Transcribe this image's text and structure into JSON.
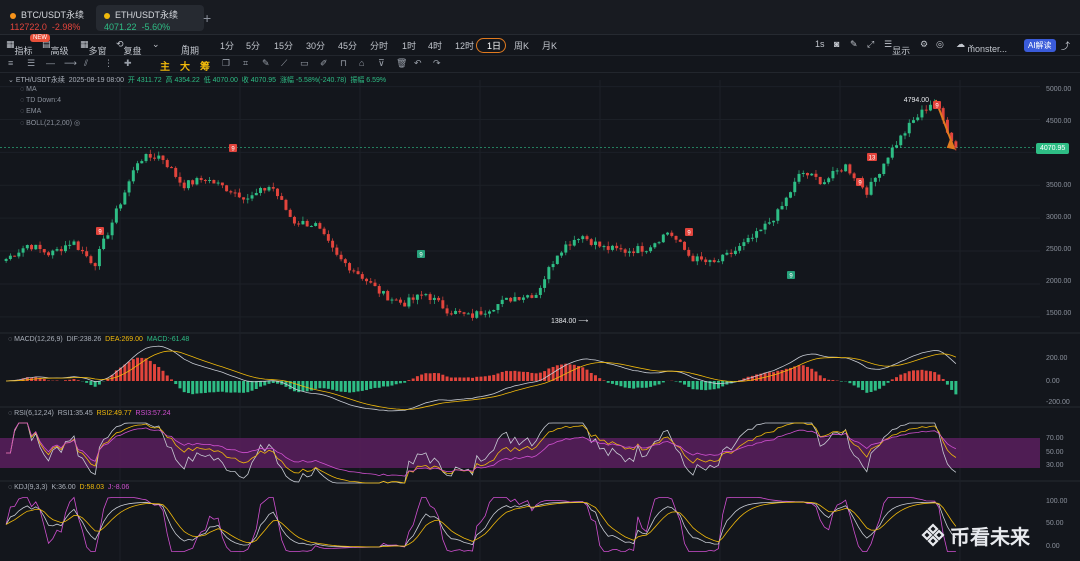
{
  "tabs": [
    {
      "name": "BTC/USDT永续",
      "price": "112722.0",
      "change": "-2.98%"
    },
    {
      "name": "ETH/USDT永续",
      "price": "4071.22",
      "change": "-5.60%"
    }
  ],
  "toolbar": {
    "indicators": "指标",
    "new_badge": "NEW",
    "advanced": "高级",
    "multi": "多窗",
    "replay": "复盘",
    "period": "周期",
    "intervals": [
      "1分",
      "5分",
      "15分",
      "30分",
      "45分",
      "分时",
      "1时",
      "4时",
      "12时",
      "1日",
      "周K",
      "月K"
    ],
    "active_interval": "1日",
    "right_items": [
      "1s",
      "显示",
      "monster...",
      "AI解读"
    ]
  },
  "toolbar2": {
    "labels": [
      "主",
      "大",
      "筹"
    ]
  },
  "ohlc": {
    "symbol": "ETH/USDT永续",
    "date": "2025-08-19 08:00",
    "open": "开 4311.72",
    "high": "高 4354.22",
    "low": "低 4070.00",
    "close": "收 4070.95",
    "change": "涨幅 -5.58%(-240.78)",
    "amplitude": "振幅 6.59%"
  },
  "overlays": [
    "MA",
    "TD  Down:4",
    "EMA",
    "BOLL(21,2,00)"
  ],
  "price_labels": {
    "high": "4794.00",
    "low": "1384.00",
    "current": "4070.95"
  },
  "td_labels": [
    {
      "x": 100,
      "y": 231,
      "t": "9",
      "c": "#e2443c"
    },
    {
      "x": 233,
      "y": 148,
      "t": "9",
      "c": "#e2443c"
    },
    {
      "x": 421,
      "y": 254,
      "t": "9",
      "c": "#26a17b"
    },
    {
      "x": 689,
      "y": 232,
      "t": "9",
      "c": "#e2443c"
    },
    {
      "x": 791,
      "y": 275,
      "t": "9",
      "c": "#26a17b"
    },
    {
      "x": 860,
      "y": 182,
      "t": "9",
      "c": "#e2443c"
    },
    {
      "x": 872,
      "y": 157,
      "t": "13",
      "c": "#e2443c"
    },
    {
      "x": 937,
      "y": 105,
      "t": "9",
      "c": "#e2443c"
    }
  ],
  "y_axis_price": [
    "5000.00",
    "4500.00",
    "4000.00",
    "3500.00",
    "3000.00",
    "2500.00",
    "2000.00",
    "1500.00"
  ],
  "macd": {
    "title": "MACD(12,26,9)",
    "dif": "DIF:238.26",
    "dea": "DEA:269.00",
    "macd": "MACD:-61.48",
    "y_axis": [
      "200.00",
      "0.00",
      "-200.00"
    ]
  },
  "rsi": {
    "title": "RSI(6,12,24)",
    "rsi1": "RSI1:35.45",
    "rsi2": "RSI2:49.77",
    "rsi3": "RSI3:57.24",
    "y_axis": [
      "70.00",
      "50.00",
      "30.00"
    ]
  },
  "kdj": {
    "title": "KDJ(9,3,3)",
    "k": "K:36.00",
    "d": "D:58.03",
    "j": "J:-8.06",
    "y_axis": [
      "100.00",
      "50.00",
      "0.00"
    ]
  },
  "watermark": "币看未来",
  "colors": {
    "up": "#2ebd85",
    "down": "#e2443c",
    "bg": "#13161c",
    "dea": "#f0b90b",
    "rsi_band": "#5a1f5e",
    "accent": "#e07a1f"
  },
  "chart_data": {
    "type": "candlestick",
    "series_close_anchors": [
      2380,
      2600,
      2450,
      2650,
      2300,
      3100,
      3900,
      3950,
      3500,
      3600,
      3450,
      3300,
      3500,
      2950,
      2900,
      2400,
      2150,
      1850,
      1700,
      1850,
      1600,
      1500,
      1650,
      1800,
      1850,
      2500,
      2750,
      2550,
      2500,
      2550,
      2800,
      2400,
      2300,
      2500,
      2750,
      3100,
      3700,
      3550,
      3800,
      3400,
      4000,
      4450,
      4794,
      4070
    ],
    "ylim": [
      1300,
      5100
    ],
    "high": 4794.0,
    "low": 1384.0,
    "last": 4070.95
  }
}
